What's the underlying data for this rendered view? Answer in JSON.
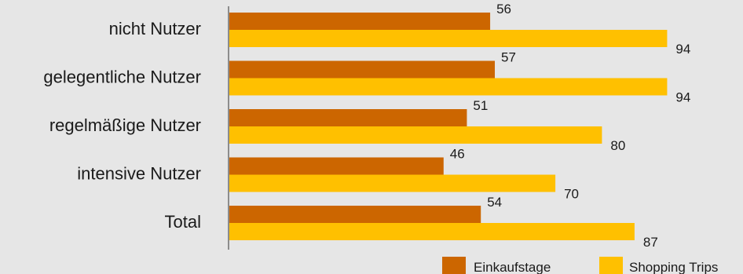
{
  "chart_data": {
    "type": "bar",
    "orientation": "horizontal",
    "categories": [
      "nicht Nutzer",
      "gelegentliche Nutzer",
      "regelmäßige Nutzer",
      "intensive Nutzer",
      "Total"
    ],
    "series": [
      {
        "name": "Einkaufstage",
        "color": "#cc6600",
        "values": [
          56,
          57,
          51,
          46,
          54
        ]
      },
      {
        "name": "Shopping Trips",
        "color": "#ffc000",
        "values": [
          94,
          94,
          80,
          70,
          87
        ]
      }
    ],
    "xlim": [
      0,
      100
    ],
    "grid": false,
    "legend_position": "bottom-right",
    "title": "",
    "xlabel": "",
    "ylabel": ""
  }
}
